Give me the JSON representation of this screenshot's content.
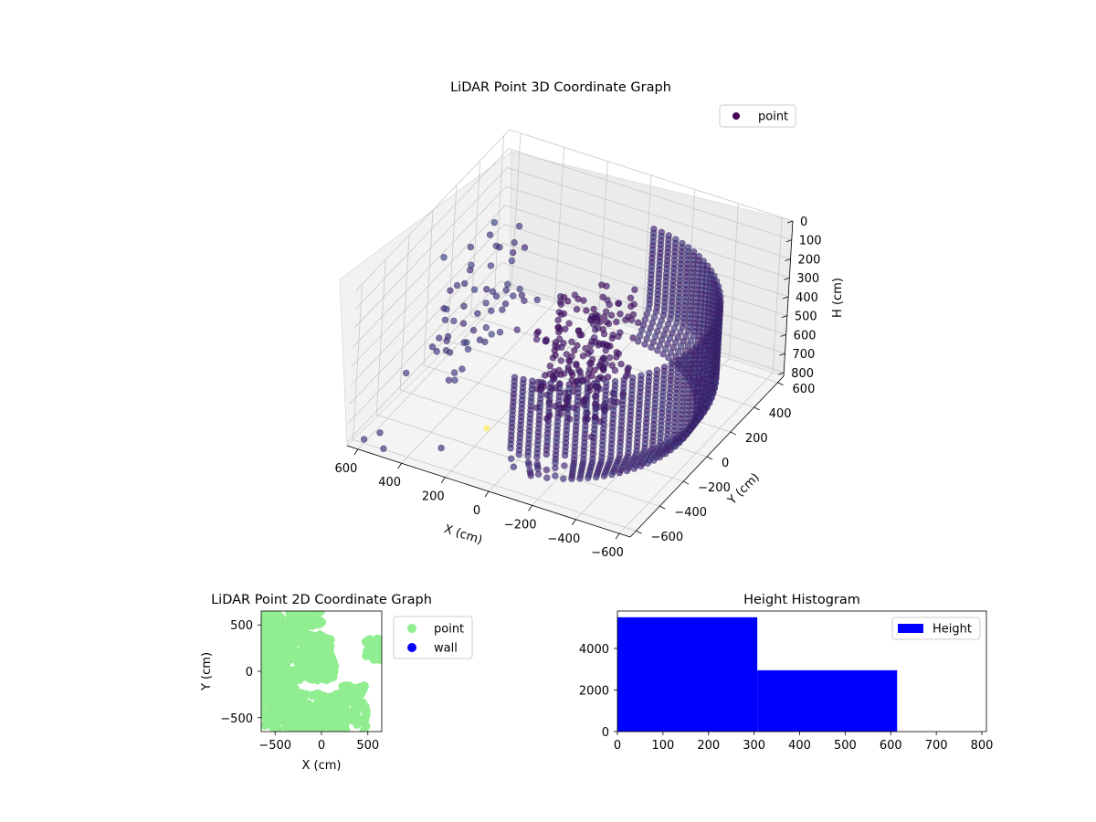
{
  "chart_data": [
    {
      "type": "scatter3d",
      "title": "LiDAR Point 3D Coordinate Graph",
      "xlabel": "X (cm)",
      "ylabel": "Y (cm)",
      "zlabel": "H (cm)",
      "xlim": [
        -650,
        650
      ],
      "ylim": [
        -650,
        650
      ],
      "zlim": [
        0,
        820
      ],
      "z_inverted": true,
      "x_ticks": [
        -600,
        -400,
        -200,
        0,
        200,
        400,
        600
      ],
      "y_ticks": [
        -600,
        -400,
        -200,
        0,
        200,
        400,
        600
      ],
      "z_ticks": [
        0,
        100,
        200,
        300,
        400,
        500,
        600,
        700,
        800
      ],
      "colormap": "viridis",
      "legend": {
        "position": "upper-right",
        "entries": [
          {
            "label": "point",
            "color": "#440154"
          }
        ]
      },
      "grid": true,
      "series": [
        {
          "name": "point",
          "description_points": [
            {
              "x": -600,
              "y": 0,
              "z": 450
            },
            {
              "x": 600,
              "y": -600,
              "z": 800
            },
            {
              "x": 620,
              "y": 300,
              "z": 380
            },
            {
              "x": 300,
              "y": -500,
              "z": 800
            }
          ]
        }
      ]
    },
    {
      "type": "scatter",
      "title": "LiDAR Point 2D Coordinate Graph",
      "xlabel": "X (cm)",
      "ylabel": "Y (cm)",
      "xlim": [
        -650,
        650
      ],
      "ylim": [
        -650,
        650
      ],
      "x_ticks": [
        -500,
        0,
        500
      ],
      "y_ticks": [
        -500,
        0,
        500
      ],
      "legend": {
        "position": "outside-right",
        "entries": [
          {
            "label": "point",
            "color": "#90ee90"
          },
          {
            "label": "wall",
            "color": "#0000ff"
          }
        ]
      },
      "grid": false
    },
    {
      "type": "bar",
      "title": "Height Histogram",
      "bins": [
        [
          0,
          307
        ],
        [
          307,
          614
        ],
        [
          614,
          800
        ]
      ],
      "values": [
        5500,
        2950,
        0
      ],
      "xlim": [
        0,
        810
      ],
      "ylim": [
        0,
        5800
      ],
      "x_ticks": [
        0,
        100,
        200,
        300,
        400,
        500,
        600,
        700,
        800
      ],
      "y_ticks": [
        0,
        2000,
        4000
      ],
      "color": "#0000ff",
      "legend": {
        "position": "upper-right",
        "entries": [
          {
            "label": "Height",
            "color": "#0000ff"
          }
        ]
      },
      "grid": false
    }
  ]
}
